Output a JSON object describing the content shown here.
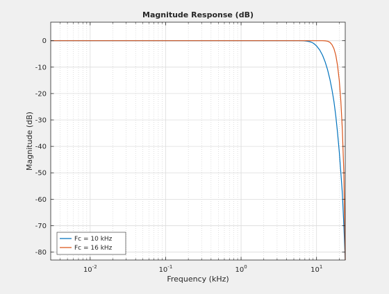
{
  "chart_data": {
    "type": "line",
    "title": "Magnitude Response (dB)",
    "xlabel": "Frequency (kHz)",
    "ylabel": "Magnitude (dB)",
    "x_scale": "log",
    "xlim": [
      0.003,
      24
    ],
    "ylim": [
      -83,
      7
    ],
    "x_ticks": [
      {
        "value": 0.01,
        "base": "10",
        "exp": "-2"
      },
      {
        "value": 0.1,
        "base": "10",
        "exp": "-1"
      },
      {
        "value": 1,
        "base": "10",
        "exp": "0"
      },
      {
        "value": 10,
        "base": "10",
        "exp": "1"
      }
    ],
    "y_ticks": [
      0,
      -10,
      -20,
      -30,
      -40,
      -50,
      -60,
      -70,
      -80
    ],
    "grid": true,
    "minor_grid": true,
    "legend_position": "bottom-left",
    "series": [
      {
        "name": "Fc = 10 kHz",
        "color": "#0072bd",
        "x": [
          0.003,
          0.01,
          0.1,
          1,
          5,
          6,
          6.5,
          7,
          7.5,
          8,
          8.5,
          9,
          9.5,
          10,
          11,
          12,
          13,
          14,
          15,
          16,
          17,
          18,
          19,
          20,
          21,
          22,
          23,
          24
        ],
        "y": [
          0,
          0,
          0,
          0,
          0,
          0,
          -0.03,
          -0.1,
          -0.2,
          -0.35,
          -0.55,
          -0.9,
          -1.4,
          -2,
          -3.5,
          -5.5,
          -8,
          -11,
          -14.5,
          -18.5,
          -23,
          -28.5,
          -35,
          -42,
          -50,
          -58,
          -70,
          -83
        ]
      },
      {
        "name": "Fc = 16 kHz",
        "color": "#d95319",
        "x": [
          0.003,
          0.01,
          0.1,
          1,
          10,
          12,
          13,
          14,
          15,
          16,
          17,
          18,
          19,
          20,
          21,
          22,
          23,
          24
        ],
        "y": [
          0,
          0,
          0,
          0,
          0,
          0,
          -0.05,
          -0.2,
          -0.6,
          -1.5,
          -3,
          -5.5,
          -9.5,
          -15,
          -23,
          -34,
          -50,
          -83
        ]
      }
    ]
  }
}
